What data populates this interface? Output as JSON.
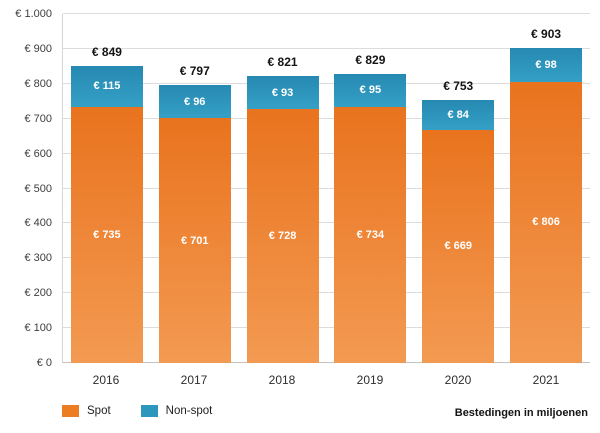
{
  "chart_data": {
    "type": "bar",
    "stacked": true,
    "title": "",
    "caption": "Bestedingen in miljoenen",
    "categories": [
      "2016",
      "2017",
      "2018",
      "2019",
      "2020",
      "2021"
    ],
    "series": [
      {
        "name": "Spot",
        "color": "#ED7D23",
        "gradient": [
          "#E9731E",
          "#F39A52"
        ],
        "values": [
          735,
          701,
          728,
          734,
          669,
          806
        ],
        "labels": [
          "€ 735",
          "€ 701",
          "€ 728",
          "€ 734",
          "€ 669",
          "€ 806"
        ]
      },
      {
        "name": "Non-spot",
        "color": "#2D96BD",
        "gradient": [
          "#2689B2",
          "#35A0C6"
        ],
        "values": [
          115,
          96,
          93,
          95,
          84,
          98
        ],
        "labels": [
          "€ 115",
          "€ 96",
          "€ 93",
          "€ 95",
          "€ 84",
          "€ 98"
        ]
      }
    ],
    "totals": [
      849,
      797,
      821,
      829,
      753,
      903
    ],
    "total_labels": [
      "€ 849",
      "€ 797",
      "€ 821",
      "€ 829",
      "€ 753",
      "€ 903"
    ],
    "ylim": [
      0,
      1000
    ],
    "ytick_labels_bottom_up": [
      "€ 0",
      "€ 100",
      "€ 200",
      "€ 300",
      "€ 400",
      "€ 500",
      "€ 600",
      "€ 700",
      "€ 800",
      "€ 900",
      "€ 1.000"
    ],
    "grid": true,
    "legend_position": "bottom-left",
    "value_label_color": "#ffffff",
    "total_label_color": "#141414"
  }
}
